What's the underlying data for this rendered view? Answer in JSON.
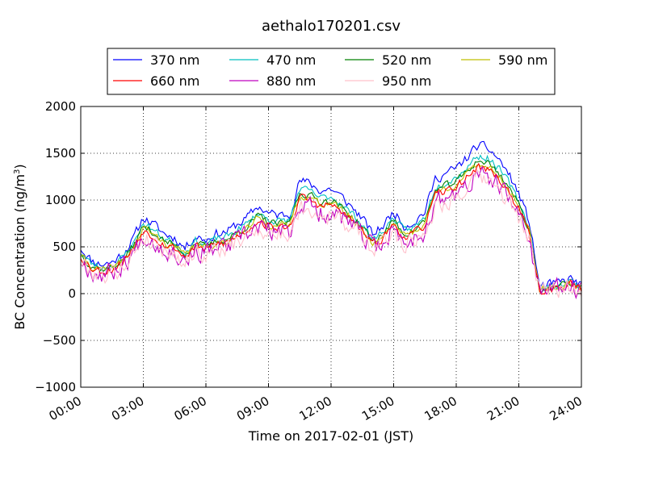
{
  "chart_data": {
    "type": "line",
    "title": "aethalo170201.csv",
    "xlabel": "Time on 2017-02-01 (JST)",
    "ylabel": "BC Concentration (ng/m³)",
    "ylabel_parts": {
      "main": "BC Concentration (ng/m",
      "sup": "3",
      "end": ")"
    },
    "xlim": [
      "00:00",
      "24:00"
    ],
    "ylim": [
      -1000,
      2000
    ],
    "x_tick_labels": [
      "00:00",
      "03:00",
      "06:00",
      "09:00",
      "12:00",
      "15:00",
      "18:00",
      "21:00",
      "24:00"
    ],
    "x_tick_hours": [
      0,
      3,
      6,
      9,
      12,
      15,
      18,
      21,
      24
    ],
    "y_tick_labels": [
      "−1000",
      "−500",
      "0",
      "500",
      "1000",
      "1500",
      "2000"
    ],
    "y_tick_values": [
      -1000,
      -500,
      0,
      500,
      1000,
      1500,
      2000
    ],
    "grid": true,
    "legend_position": "top-center",
    "legend_columns": 4,
    "x_hours": [
      0,
      0.5,
      1,
      1.5,
      2,
      2.5,
      3,
      3.5,
      4,
      4.5,
      5,
      5.5,
      6,
      6.5,
      7,
      7.5,
      8,
      8.5,
      9,
      9.5,
      10,
      10.5,
      11,
      11.5,
      12,
      12.5,
      13,
      13.5,
      14,
      14.5,
      15,
      15.5,
      16,
      16.5,
      17,
      17.5,
      18,
      18.5,
      19,
      19.5,
      20,
      20.5,
      21,
      21.5,
      22,
      22.5,
      23,
      23.5,
      24
    ],
    "base_series": [
      420,
      300,
      260,
      280,
      360,
      500,
      720,
      650,
      560,
      520,
      420,
      540,
      500,
      560,
      580,
      650,
      720,
      830,
      760,
      740,
      750,
      1080,
      1050,
      980,
      1000,
      920,
      820,
      710,
      550,
      640,
      780,
      640,
      680,
      780,
      1100,
      1150,
      1200,
      1300,
      1420,
      1400,
      1300,
      1150,
      950,
      680,
      40,
      60,
      80,
      120,
      50
    ],
    "series": [
      {
        "name": "370 nm",
        "color": "#0000ff",
        "scale": 1.09,
        "offset": 30,
        "noise": 45,
        "seed": 11
      },
      {
        "name": "470 nm",
        "color": "#00bfbf",
        "scale": 1.03,
        "offset": 10,
        "noise": 35,
        "seed": 23
      },
      {
        "name": "520 nm",
        "color": "#008000",
        "scale": 1.0,
        "offset": 0,
        "noise": 35,
        "seed": 37
      },
      {
        "name": "590 nm",
        "color": "#bfbf00",
        "scale": 0.98,
        "offset": -5,
        "noise": 35,
        "seed": 41
      },
      {
        "name": "660 nm",
        "color": "#ff0000",
        "scale": 0.96,
        "offset": -10,
        "noise": 40,
        "seed": 53
      },
      {
        "name": "880 nm",
        "color": "#bf00bf",
        "scale": 0.9,
        "offset": -20,
        "noise": 95,
        "seed": 67
      },
      {
        "name": "950 nm",
        "color": "#ffc0cb",
        "scale": 0.88,
        "offset": -25,
        "noise": 85,
        "seed": 79
      }
    ]
  }
}
